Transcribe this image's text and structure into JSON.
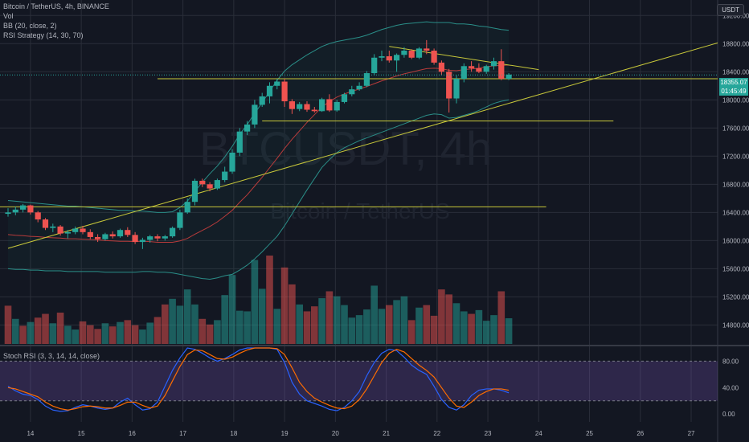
{
  "legend": {
    "symbol": "Bitcoin / TetherUS, 4h, BINANCE",
    "vol": "Vol",
    "bb": "BB (20, close, 2)",
    "rsi": "RSI Strategy (14, 30, 70)"
  },
  "watermark": {
    "ticker": "BTCUSDT, 4h",
    "name": "Bitcoin / TetherUS"
  },
  "currency_button": "USDT",
  "price_badge": {
    "price": "18355.07",
    "countdown": "01:45:49",
    "color": "#26a69a"
  },
  "stoch_label": "Stoch RSI (3, 3, 14, 14, close)",
  "colors": {
    "up": "#26a69a",
    "down": "#ef5350",
    "trendline": "#c8c83a",
    "bb": "#2a8e88",
    "basis": "#b83b3b",
    "k": "#2962ff",
    "d": "#ff6d00"
  },
  "chart_data": [
    {
      "type": "candlestick",
      "title": "Bitcoin / TetherUS, 4h, BINANCE",
      "x_tick_labels": [
        "14",
        "15",
        "16",
        "17",
        "18",
        "19",
        "20",
        "21",
        "22",
        "23",
        "24",
        "25",
        "26",
        "27"
      ],
      "y_tick_labels": [
        14800,
        15200,
        15600,
        16000,
        16400,
        16800,
        17200,
        17600,
        18000,
        18400,
        18800,
        19200
      ],
      "ylim": [
        14530,
        19420
      ],
      "ohlc": [
        [
          16380,
          16460,
          16340,
          16400
        ],
        [
          16400,
          16480,
          16360,
          16440
        ],
        [
          16440,
          16520,
          16400,
          16500
        ],
        [
          16500,
          16510,
          16370,
          16400
        ],
        [
          16400,
          16420,
          16260,
          16300
        ],
        [
          16300,
          16320,
          16150,
          16180
        ],
        [
          16180,
          16240,
          16120,
          16200
        ],
        [
          16200,
          16220,
          16070,
          16100
        ],
        [
          16100,
          16150,
          16030,
          16120
        ],
        [
          16120,
          16200,
          16090,
          16170
        ],
        [
          16170,
          16210,
          16090,
          16120
        ],
        [
          16120,
          16160,
          16020,
          16050
        ],
        [
          16050,
          16090,
          15980,
          16020
        ],
        [
          16020,
          16110,
          16000,
          16090
        ],
        [
          16090,
          16130,
          16030,
          16060
        ],
        [
          16060,
          16170,
          16040,
          16150
        ],
        [
          16150,
          16190,
          16050,
          16080
        ],
        [
          16080,
          16120,
          15950,
          15980
        ],
        [
          15980,
          16040,
          15880,
          16010
        ],
        [
          16010,
          16080,
          15970,
          16060
        ],
        [
          16060,
          16090,
          15990,
          16030
        ],
        [
          16030,
          16080,
          16000,
          16060
        ],
        [
          16060,
          16200,
          16040,
          16180
        ],
        [
          16180,
          16440,
          16150,
          16400
        ],
        [
          16400,
          16600,
          16380,
          16550
        ],
        [
          16550,
          16880,
          16500,
          16850
        ],
        [
          16850,
          16880,
          16760,
          16800
        ],
        [
          16800,
          16830,
          16700,
          16740
        ],
        [
          16740,
          16880,
          16720,
          16860
        ],
        [
          16860,
          17050,
          16830,
          16980
        ],
        [
          16980,
          17300,
          16950,
          17250
        ],
        [
          17250,
          17600,
          17200,
          17550
        ],
        [
          17550,
          17700,
          17500,
          17650
        ],
        [
          17650,
          18000,
          17600,
          17930
        ],
        [
          17930,
          18100,
          17900,
          18050
        ],
        [
          18050,
          18250,
          17950,
          18200
        ],
        [
          18200,
          18300,
          18150,
          18260
        ],
        [
          18260,
          18300,
          17900,
          17980
        ],
        [
          17980,
          18010,
          17800,
          17870
        ],
        [
          17870,
          17970,
          17840,
          17940
        ],
        [
          17940,
          17980,
          17830,
          17860
        ],
        [
          17860,
          17900,
          17820,
          17840
        ],
        [
          17840,
          18030,
          17830,
          18010
        ],
        [
          18010,
          18080,
          17830,
          17850
        ],
        [
          17850,
          18000,
          17830,
          17970
        ],
        [
          17970,
          18100,
          17950,
          18080
        ],
        [
          18080,
          18200,
          18050,
          18150
        ],
        [
          18150,
          18250,
          18130,
          18200
        ],
        [
          18200,
          18410,
          18180,
          18380
        ],
        [
          18380,
          18650,
          18350,
          18600
        ],
        [
          18600,
          18700,
          18550,
          18620
        ],
        [
          18620,
          18700,
          18530,
          18560
        ],
        [
          18560,
          18660,
          18400,
          18640
        ],
        [
          18640,
          18750,
          18600,
          18700
        ],
        [
          18700,
          18720,
          18580,
          18600
        ],
        [
          18600,
          18750,
          18580,
          18730
        ],
        [
          18730,
          18850,
          18650,
          18700
        ],
        [
          18700,
          18730,
          18500,
          18530
        ],
        [
          18530,
          18560,
          18350,
          18400
        ],
        [
          18400,
          18440,
          17820,
          18020
        ],
        [
          18020,
          18350,
          17950,
          18300
        ],
        [
          18300,
          18520,
          18250,
          18480
        ],
        [
          18480,
          18550,
          18400,
          18450
        ],
        [
          18450,
          18520,
          18380,
          18400
        ],
        [
          18400,
          18500,
          18370,
          18480
        ],
        [
          18480,
          18600,
          18430,
          18550
        ],
        [
          18550,
          18720,
          18280,
          18300
        ],
        [
          18300,
          18380,
          18280,
          18360
        ]
      ],
      "volume": [
        {
          "v": 610,
          "up": false
        },
        {
          "v": 400,
          "up": true
        },
        {
          "v": 290,
          "up": false
        },
        {
          "v": 350,
          "up": true
        },
        {
          "v": 420,
          "up": false
        },
        {
          "v": 480,
          "up": false
        },
        {
          "v": 330,
          "up": true
        },
        {
          "v": 500,
          "up": false
        },
        {
          "v": 290,
          "up": true
        },
        {
          "v": 230,
          "up": true
        },
        {
          "v": 360,
          "up": false
        },
        {
          "v": 300,
          "up": false
        },
        {
          "v": 240,
          "up": false
        },
        {
          "v": 330,
          "up": true
        },
        {
          "v": 280,
          "up": false
        },
        {
          "v": 350,
          "up": true
        },
        {
          "v": 380,
          "up": false
        },
        {
          "v": 300,
          "up": false
        },
        {
          "v": 230,
          "up": true
        },
        {
          "v": 340,
          "up": true
        },
        {
          "v": 430,
          "up": false
        },
        {
          "v": 630,
          "up": false
        },
        {
          "v": 720,
          "up": true
        },
        {
          "v": 610,
          "up": true
        },
        {
          "v": 870,
          "up": true
        },
        {
          "v": 630,
          "up": true
        },
        {
          "v": 400,
          "up": false
        },
        {
          "v": 310,
          "up": false
        },
        {
          "v": 380,
          "up": true
        },
        {
          "v": 780,
          "up": true
        },
        {
          "v": 1100,
          "up": true
        },
        {
          "v": 530,
          "up": true
        },
        {
          "v": 520,
          "up": true
        },
        {
          "v": 1340,
          "up": true
        },
        {
          "v": 880,
          "up": true
        },
        {
          "v": 1410,
          "up": false
        },
        {
          "v": 560,
          "up": true
        },
        {
          "v": 1220,
          "up": false
        },
        {
          "v": 950,
          "up": false
        },
        {
          "v": 630,
          "up": true
        },
        {
          "v": 520,
          "up": false
        },
        {
          "v": 600,
          "up": false
        },
        {
          "v": 730,
          "up": true
        },
        {
          "v": 840,
          "up": false
        },
        {
          "v": 760,
          "up": true
        },
        {
          "v": 620,
          "up": true
        },
        {
          "v": 420,
          "up": true
        },
        {
          "v": 460,
          "up": true
        },
        {
          "v": 550,
          "up": true
        },
        {
          "v": 930,
          "up": true
        },
        {
          "v": 560,
          "up": true
        },
        {
          "v": 620,
          "up": false
        },
        {
          "v": 700,
          "up": true
        },
        {
          "v": 760,
          "up": true
        },
        {
          "v": 380,
          "up": false
        },
        {
          "v": 580,
          "up": true
        },
        {
          "v": 620,
          "up": false
        },
        {
          "v": 450,
          "up": false
        },
        {
          "v": 870,
          "up": false
        },
        {
          "v": 790,
          "up": false
        },
        {
          "v": 650,
          "up": true
        },
        {
          "v": 520,
          "up": true
        },
        {
          "v": 480,
          "up": false
        },
        {
          "v": 540,
          "up": true
        },
        {
          "v": 370,
          "up": true
        },
        {
          "v": 460,
          "up": true
        },
        {
          "v": 840,
          "up": false
        },
        {
          "v": 410,
          "up": true
        }
      ],
      "bb_upper": [
        16570,
        16560,
        16550,
        16540,
        16530,
        16520,
        16510,
        16500,
        16490,
        16490,
        16480,
        16470,
        16460,
        16450,
        16440,
        16430,
        16430,
        16420,
        16420,
        16410,
        16400,
        16400,
        16410,
        16470,
        16560,
        16700,
        16830,
        16950,
        17060,
        17190,
        17340,
        17510,
        17650,
        17810,
        17960,
        18120,
        18280,
        18410,
        18500,
        18570,
        18640,
        18700,
        18760,
        18800,
        18830,
        18850,
        18870,
        18890,
        18920,
        18960,
        19000,
        19030,
        19060,
        19080,
        19090,
        19100,
        19110,
        19100,
        19100,
        19100,
        19080,
        19080,
        19070,
        19050,
        19040,
        19020,
        19000,
        18990
      ],
      "bb_lower": [
        15600,
        15590,
        15590,
        15580,
        15580,
        15570,
        15570,
        15570,
        15560,
        15560,
        15560,
        15560,
        15560,
        15550,
        15550,
        15550,
        15550,
        15550,
        15560,
        15560,
        15550,
        15550,
        15540,
        15520,
        15500,
        15480,
        15460,
        15450,
        15470,
        15500,
        15520,
        15580,
        15650,
        15740,
        15840,
        15950,
        16060,
        16210,
        16380,
        16550,
        16720,
        16880,
        17040,
        17150,
        17250,
        17320,
        17370,
        17420,
        17460,
        17500,
        17540,
        17580,
        17620,
        17660,
        17700,
        17740,
        17780,
        17800,
        17790,
        17740,
        17750,
        17780,
        17810,
        17850,
        17900,
        17950,
        17980,
        18000
      ],
      "bb_basis": [
        16085,
        16075,
        16070,
        16060,
        16055,
        16045,
        16040,
        16035,
        16025,
        16025,
        16020,
        16015,
        16010,
        16000,
        15995,
        15990,
        15990,
        15985,
        15990,
        15985,
        15975,
        15975,
        15975,
        15995,
        16030,
        16090,
        16145,
        16200,
        16265,
        16345,
        16430,
        16545,
        16650,
        16775,
        16900,
        17035,
        17170,
        17310,
        17440,
        17560,
        17680,
        17790,
        17900,
        17975,
        18040,
        18085,
        18120,
        18155,
        18190,
        18230,
        18270,
        18305,
        18340,
        18370,
        18395,
        18420,
        18445,
        18450,
        18445,
        18420,
        18415,
        18430,
        18440,
        18450,
        18470,
        18485,
        18490,
        18495
      ],
      "trendlines": [
        {
          "x1": 0,
          "y1": 15890,
          "x2": "end",
          "y2": 18810
        },
        {
          "x1": 51,
          "y1": 18760,
          "x2": 71,
          "y2": 18430
        },
        {
          "x1": -2,
          "y1": 16480,
          "x2": 72,
          "y2": 16480
        },
        {
          "x1": 20,
          "y1": 18300,
          "x2": "end",
          "y2": 18300
        },
        {
          "x1": 34,
          "y1": 17700,
          "x2": 81,
          "y2": 17700
        }
      ],
      "last_price": 18355.07
    },
    {
      "type": "line",
      "title": "Stoch RSI (3, 3, 14, 14, close)",
      "y_tick_labels": [
        "80.00",
        "40.00",
        "0.00"
      ],
      "ylim": [
        -12,
        100
      ],
      "bands": [
        80,
        20
      ],
      "series": [
        {
          "color": "#2962ff",
          "values": [
            42,
            35,
            30,
            28,
            22,
            12,
            6,
            4,
            5,
            10,
            14,
            12,
            9,
            7,
            9,
            18,
            24,
            14,
            6,
            8,
            18,
            42,
            66,
            85,
            100,
            98,
            92,
            85,
            80,
            84,
            90,
            97,
            100,
            100,
            100,
            100,
            98,
            78,
            48,
            30,
            20,
            16,
            12,
            7,
            5,
            10,
            20,
            34,
            58,
            78,
            92,
            98,
            96,
            86,
            74,
            66,
            60,
            42,
            22,
            10,
            6,
            14,
            28,
            36,
            38,
            38,
            36,
            32
          ]
        },
        {
          "color": "#ff6d00",
          "values": [
            40,
            38,
            34,
            30,
            26,
            18,
            12,
            8,
            6,
            8,
            11,
            12,
            11,
            9,
            9,
            13,
            18,
            18,
            13,
            9,
            12,
            28,
            50,
            72,
            90,
            97,
            96,
            90,
            84,
            83,
            86,
            92,
            97,
            100,
            100,
            100,
            99,
            90,
            70,
            48,
            34,
            24,
            18,
            13,
            9,
            8,
            12,
            22,
            38,
            58,
            78,
            92,
            98,
            94,
            84,
            74,
            66,
            56,
            40,
            24,
            12,
            10,
            18,
            28,
            34,
            38,
            38,
            36
          ]
        }
      ]
    }
  ]
}
